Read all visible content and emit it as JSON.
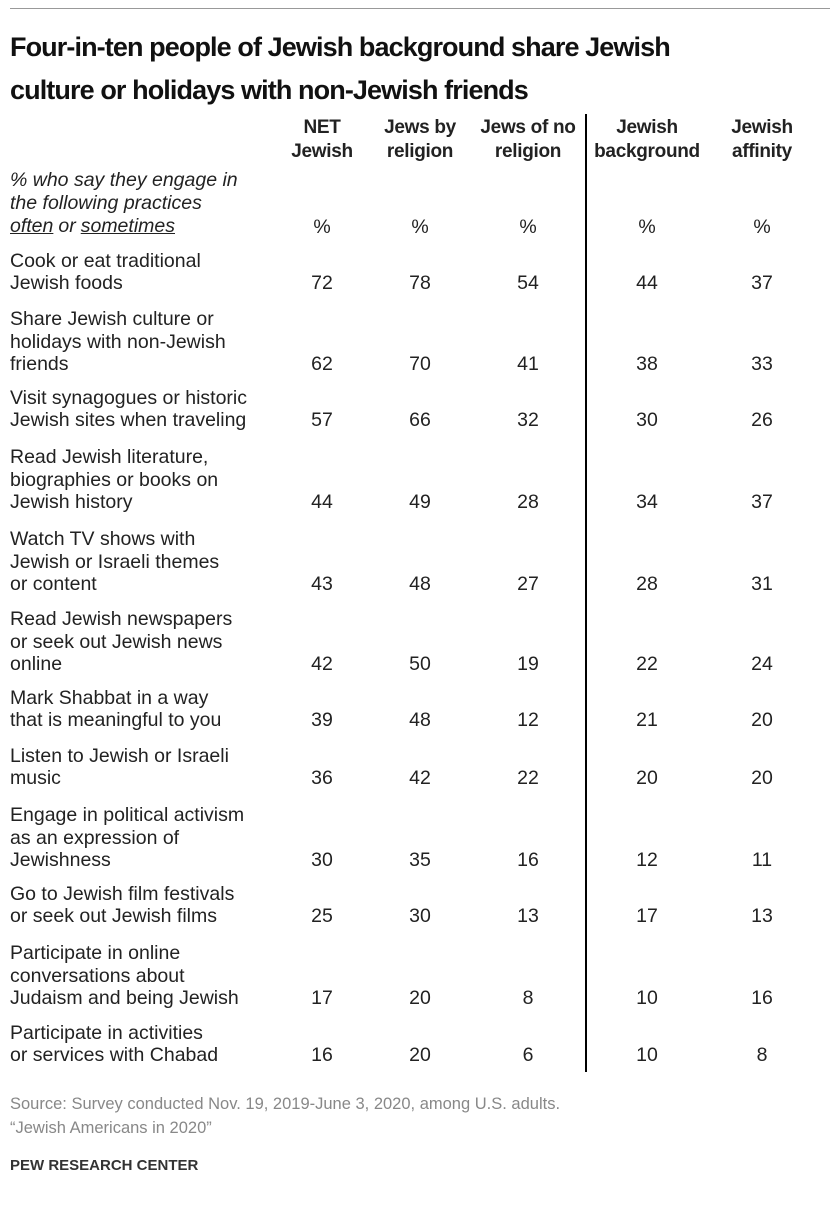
{
  "title": [
    "Four-in-ten people of Jewish background share Jewish",
    "culture or holidays with non-Jewish friends"
  ],
  "columns": [
    {
      "header": [
        "NET",
        "Jewish"
      ],
      "unit": "%"
    },
    {
      "header": [
        "Jews by",
        "religion"
      ],
      "unit": "%"
    },
    {
      "header": [
        "Jews of no",
        "religion"
      ],
      "unit": "%"
    },
    {
      "header": [
        "Jewish",
        "background"
      ],
      "unit": "%"
    },
    {
      "header": [
        "Jewish",
        "affinity"
      ],
      "unit": "%"
    }
  ],
  "note": {
    "line1": "% who say they engage in",
    "line2": "the following practices",
    "often": "often",
    "or": "or",
    "sometimes": "sometimes"
  },
  "rows": [
    {
      "label": [
        "Cook or eat traditional",
        "Jewish foods"
      ],
      "values": [
        72,
        78,
        54,
        44,
        37
      ]
    },
    {
      "label": [
        "Share Jewish culture or",
        "holidays with non-Jewish",
        "friends"
      ],
      "values": [
        62,
        70,
        41,
        38,
        33
      ]
    },
    {
      "label": [
        "Visit synagogues or historic",
        "Jewish sites when traveling"
      ],
      "values": [
        57,
        66,
        32,
        30,
        26
      ]
    },
    {
      "label": [
        "Read Jewish literature,",
        "biographies or books on",
        "Jewish history"
      ],
      "values": [
        44,
        49,
        28,
        34,
        37
      ]
    },
    {
      "label": [
        "Watch TV shows with",
        "Jewish or Israeli themes",
        "or content"
      ],
      "values": [
        43,
        48,
        27,
        28,
        31
      ]
    },
    {
      "label": [
        "Read Jewish newspapers",
        "or seek out Jewish news",
        "online"
      ],
      "values": [
        42,
        50,
        19,
        22,
        24
      ]
    },
    {
      "label": [
        "Mark Shabbat in a way",
        "that is meaningful to you"
      ],
      "values": [
        39,
        48,
        12,
        21,
        20
      ]
    },
    {
      "label": [
        "Listen to Jewish or Israeli",
        "music"
      ],
      "values": [
        36,
        42,
        22,
        20,
        20
      ]
    },
    {
      "label": [
        "Engage in political activism",
        "as an expression of",
        "Jewishness"
      ],
      "values": [
        30,
        35,
        16,
        12,
        11
      ]
    },
    {
      "label": [
        "Go to Jewish film festivals",
        "or seek out Jewish films"
      ],
      "values": [
        25,
        30,
        13,
        17,
        13
      ]
    },
    {
      "label": [
        "Participate in online",
        "conversations about",
        "Judaism and being Jewish"
      ],
      "values": [
        17,
        20,
        8,
        10,
        16
      ]
    },
    {
      "label": [
        "Participate in activities",
        "or services with Chabad"
      ],
      "values": [
        16,
        20,
        6,
        10,
        8
      ]
    }
  ],
  "source": [
    "Source: Survey conducted Nov. 19, 2019-June 3, 2020, among U.S. adults.",
    "“Jewish Americans in 2020”"
  ],
  "footer": "PEW RESEARCH CENTER"
}
